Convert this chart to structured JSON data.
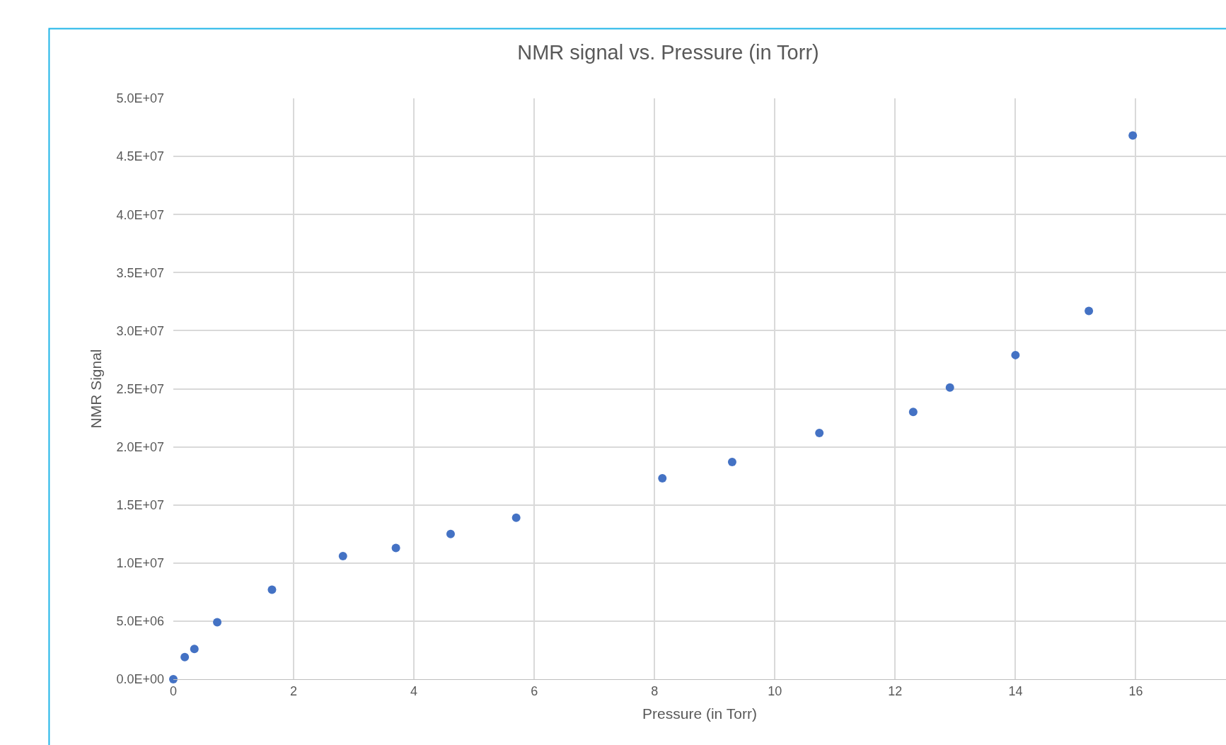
{
  "chart_data": {
    "type": "scatter",
    "title": "NMR signal vs. Pressure (in Torr)",
    "xlabel": "Pressure (in Torr)",
    "ylabel": "NMR Signal",
    "x": [
      0,
      0.19,
      0.35,
      0.73,
      1.64,
      2.82,
      3.7,
      4.61,
      5.7,
      8.13,
      9.29,
      10.74,
      12.3,
      12.91,
      14.0,
      15.22,
      15.95
    ],
    "series": [
      {
        "color": "#4472c4",
        "values": [
          0,
          1900000.0,
          2600000.0,
          4900000.0,
          7700000.0,
          10600000.0,
          11300000.0,
          12500000.0,
          13900000.0,
          17300000.0,
          18700000.0,
          21200000.0,
          23000000.0,
          25100000.0,
          27900000.0,
          31700000.0,
          46800000.0
        ]
      }
    ],
    "xlim": [
      0,
      17.5
    ],
    "xticks": [
      0,
      2,
      4,
      6,
      8,
      10,
      12,
      14,
      16
    ],
    "ylim": [
      0,
      50000000.0
    ],
    "yticks": [
      {
        "value": 0,
        "label": "0.0E+00"
      },
      {
        "value": 5000000.0,
        "label": "5.0E+06"
      },
      {
        "value": 10000000.0,
        "label": "1.0E+07"
      },
      {
        "value": 15000000.0,
        "label": "1.5E+07"
      },
      {
        "value": 20000000.0,
        "label": "2.0E+07"
      },
      {
        "value": 25000000.0,
        "label": "2.5E+07"
      },
      {
        "value": 30000000.0,
        "label": "3.0E+07"
      },
      {
        "value": 35000000.0,
        "label": "3.5E+07"
      },
      {
        "value": 40000000.0,
        "label": "4.0E+07"
      },
      {
        "value": 45000000.0,
        "label": "4.5E+07"
      },
      {
        "value": 50000000.0,
        "label": "5.0E+07"
      }
    ],
    "grid": true,
    "legend": false,
    "marker": "circle"
  }
}
